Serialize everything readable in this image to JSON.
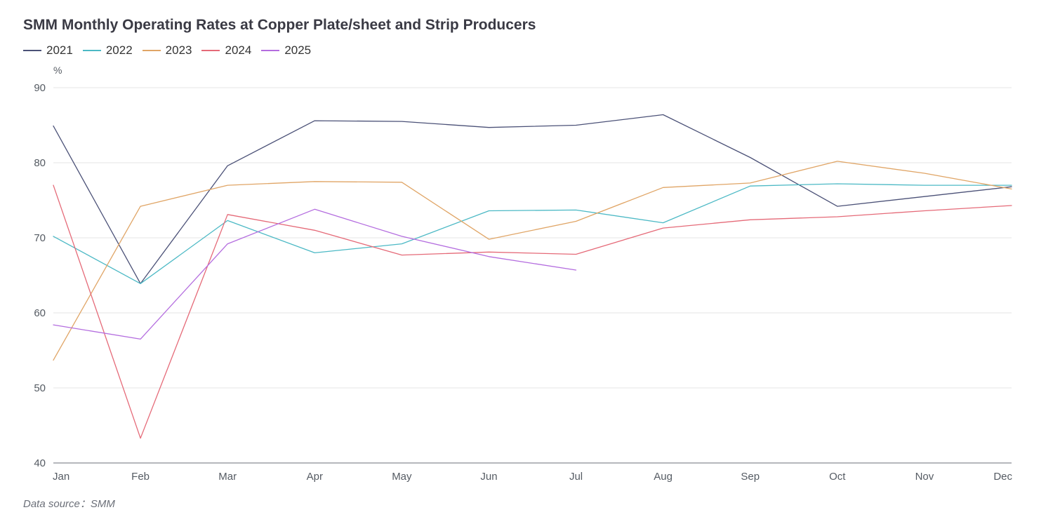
{
  "chart_data": {
    "type": "line",
    "title": "SMM Monthly Operating Rates at Copper Plate/sheet and Strip Producers",
    "ylabel": "%",
    "xlabel": "",
    "ylim": [
      40,
      90
    ],
    "yticks": [
      40,
      50,
      60,
      70,
      80,
      90
    ],
    "grid": true,
    "legend_position": "top-left",
    "categories": [
      "Jan",
      "Feb",
      "Mar",
      "Apr",
      "May",
      "Jun",
      "Jul",
      "Aug",
      "Sep",
      "Oct",
      "Nov",
      "Dec"
    ],
    "series": [
      {
        "name": "2021",
        "color": "#4b5177",
        "values": [
          84.9,
          63.9,
          79.6,
          85.6,
          85.5,
          84.7,
          85.0,
          86.4,
          80.7,
          74.2,
          75.5,
          76.8
        ]
      },
      {
        "name": "2022",
        "color": "#4cb9c5",
        "values": [
          70.2,
          63.9,
          72.3,
          68.0,
          69.2,
          73.6,
          73.7,
          72.0,
          76.9,
          77.2,
          77.0,
          77.0
        ]
      },
      {
        "name": "2023",
        "color": "#e0a566",
        "values": [
          53.7,
          74.2,
          77.0,
          77.5,
          77.4,
          69.8,
          72.2,
          76.7,
          77.3,
          80.2,
          78.6,
          76.5
        ]
      },
      {
        "name": "2024",
        "color": "#e56a78",
        "values": [
          77.0,
          43.3,
          73.1,
          71.0,
          67.7,
          68.1,
          67.8,
          71.3,
          72.4,
          72.8,
          73.6,
          74.3
        ]
      },
      {
        "name": "2025",
        "color": "#b46ddf",
        "values": [
          58.4,
          56.5,
          69.2,
          73.8,
          70.2,
          67.5,
          65.7,
          null,
          null,
          null,
          null,
          null
        ]
      }
    ]
  },
  "source": "Data source：SMM"
}
